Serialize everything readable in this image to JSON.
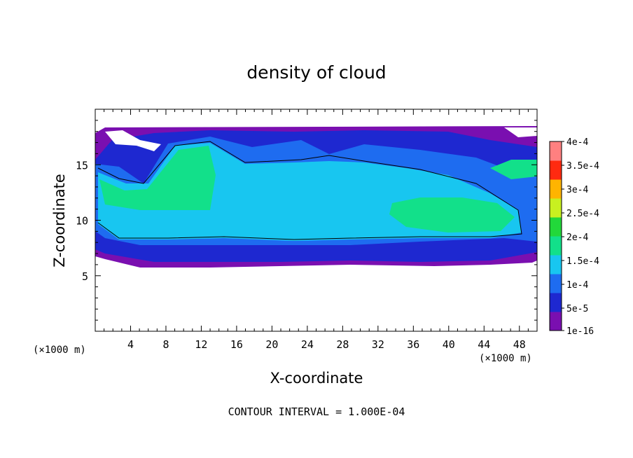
{
  "chart_data": {
    "type": "heatmap",
    "title": "density of cloud",
    "xlabel": "X-coordinate",
    "ylabel": "Z-coordinate",
    "x_unit": "(×1000 m)",
    "z_unit": "(×1000 m)",
    "footer": "CONTOUR INTERVAL = 1.000E-04",
    "xlim": [
      0,
      50
    ],
    "ylim": [
      0,
      20
    ],
    "x_ticks": [
      4,
      8,
      12,
      16,
      20,
      24,
      28,
      32,
      36,
      40,
      44,
      48
    ],
    "y_ticks": [
      5,
      10,
      15
    ],
    "colorbar": {
      "labels": [
        "4e-4",
        "3.5e-4",
        "3e-4",
        "2.5e-4",
        "2e-4",
        "1.5e-4",
        "1e-4",
        "5e-5",
        "1e-16"
      ],
      "levels": [
        1e-16,
        5e-05,
        0.0001,
        0.00015,
        0.0002,
        0.00025,
        0.0003,
        0.00035,
        0.0004
      ],
      "colors": [
        "#7a0fb0",
        "#1e28d0",
        "#1e6cf0",
        "#18c6f0",
        "#12e08a",
        "#22d83a",
        "#c8f020",
        "#ffb400",
        "#ff2a10",
        "#ff8080"
      ]
    },
    "cloud_layer_z_range": [
      6,
      18.5
    ],
    "contour_value": 0.0001
  }
}
